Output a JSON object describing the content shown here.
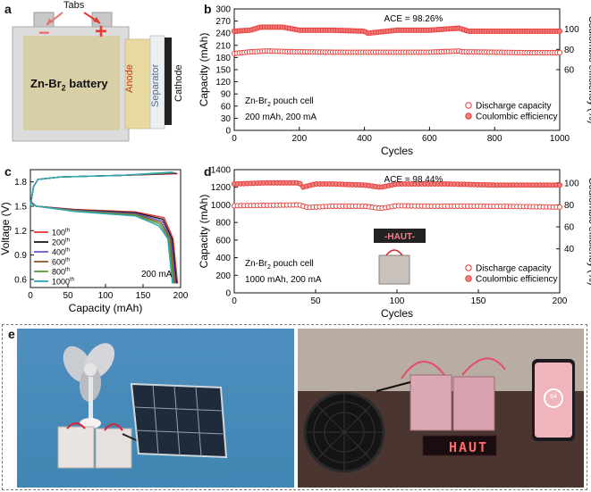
{
  "panel_labels": {
    "a": "a",
    "b": "b",
    "c": "c",
    "d": "d",
    "e": "e"
  },
  "battery_illustration": {
    "tabs_label": "Tabs",
    "battery_label_main": "Zn-Br",
    "battery_label_sub": "2",
    "battery_label_tail": " battery",
    "minus_sign": "−",
    "plus_sign": "+",
    "layer_anode": "Anode",
    "layer_separator": "Separator",
    "layer_cathode": "Cathode"
  },
  "photo_e": {
    "sign_text": "HAUT",
    "phone_text": "64"
  },
  "chart_data": [
    {
      "id": "b",
      "type": "scatter",
      "xlabel": "Cycles",
      "ylabel_left": "Capacity  (mAh)",
      "ylabel_right": "Coulombic efficiency  (%)",
      "xlim": [
        0,
        1000
      ],
      "ylim_left": [
        0,
        300
      ],
      "ylim_right": [
        0,
        120
      ],
      "x_ticks": [
        "0",
        "200",
        "400",
        "600",
        "800",
        "1000"
      ],
      "y_ticks_left": [
        "0",
        "30",
        "60",
        "90",
        "120",
        "150",
        "180",
        "210",
        "240",
        "270",
        "300"
      ],
      "y_ticks_right": [
        "60",
        "80",
        "100"
      ],
      "annotation": "ACE = 98.26%",
      "cell_text_main": "Zn-Br",
      "cell_text_sub": "2",
      "cell_text_tail": " pouch cell",
      "cell_condition": "200 mAh, 200 mA",
      "legend": {
        "position": "bottom-right"
      },
      "series": [
        {
          "name": "Discharge capacity",
          "axis": "left",
          "marker": "open-circle",
          "color": "#e53935",
          "points": [
            [
              0,
              190
            ],
            [
              50,
              194
            ],
            [
              100,
              196
            ],
            [
              150,
              195
            ],
            [
              200,
              194
            ],
            [
              300,
              193
            ],
            [
              400,
              193
            ],
            [
              500,
              193
            ],
            [
              600,
              193
            ],
            [
              690,
              196
            ],
            [
              700,
              194
            ],
            [
              800,
              193
            ],
            [
              900,
              192
            ],
            [
              1000,
              192
            ]
          ]
        },
        {
          "name": "Coulombic efficiency",
          "axis": "right",
          "marker": "filled-circle",
          "color": "#e53935",
          "points": [
            [
              0,
              98
            ],
            [
              50,
              99
            ],
            [
              80,
              102
            ],
            [
              150,
              102
            ],
            [
              200,
              99
            ],
            [
              300,
              99
            ],
            [
              400,
              98
            ],
            [
              410,
              96
            ],
            [
              500,
              99
            ],
            [
              600,
              99
            ],
            [
              690,
              101
            ],
            [
              720,
              98
            ],
            [
              780,
              98
            ],
            [
              800,
              98
            ],
            [
              900,
              98
            ],
            [
              1000,
              98
            ]
          ]
        }
      ]
    },
    {
      "id": "c",
      "type": "line",
      "xlabel": "Capacity (mAh)",
      "ylabel": "Voltage (V)",
      "xlim": [
        0,
        200
      ],
      "ylim": [
        0.5,
        1.95
      ],
      "x_ticks": [
        "0",
        "50",
        "100",
        "150",
        "200"
      ],
      "y_ticks": [
        "0.6",
        "0.9",
        "1.2",
        "1.5",
        "1.8"
      ],
      "annotation": "200 mA",
      "legend": {
        "position": "bottom-left"
      },
      "series": [
        {
          "name": "100",
          "sup": "th",
          "color": "#e53935"
        },
        {
          "name": "200",
          "sup": "th",
          "color": "#1a1a1a"
        },
        {
          "name": "400",
          "sup": "th",
          "color": "#6a5acd"
        },
        {
          "name": "600",
          "sup": "th",
          "color": "#8b5a2b"
        },
        {
          "name": "800",
          "sup": "th",
          "color": "#5a9a3a"
        },
        {
          "name": "1000",
          "sup": "th",
          "color": "#2aa7b8"
        }
      ]
    },
    {
      "id": "d",
      "type": "scatter",
      "xlabel": "Cycles",
      "ylabel_left": "Capacity (mAh)",
      "ylabel_right": "Coulombic efficiency (%)",
      "xlim": [
        0,
        200
      ],
      "ylim_left": [
        0,
        1400
      ],
      "ylim_right": [
        0,
        112
      ],
      "x_ticks": [
        "0",
        "50",
        "100",
        "150",
        "200"
      ],
      "y_ticks_left": [
        "0",
        "200",
        "400",
        "600",
        "800",
        "1000",
        "1200",
        "1400"
      ],
      "y_ticks_right": [
        "40",
        "60",
        "80",
        "100"
      ],
      "annotation": "ACE = 98.44%",
      "cell_text_main": "Zn-Br",
      "cell_text_sub": "2",
      "cell_text_tail": " pouch cell",
      "cell_condition": "1000 mAh, 200 mA",
      "inset_text": "HAUT",
      "legend": {
        "position": "bottom-right"
      },
      "series": [
        {
          "name": "Discharge capacity",
          "axis": "left",
          "marker": "open-circle",
          "color": "#e53935",
          "points": [
            [
              0,
              990
            ],
            [
              20,
              995
            ],
            [
              40,
              1000
            ],
            [
              45,
              970
            ],
            [
              60,
              985
            ],
            [
              80,
              985
            ],
            [
              90,
              960
            ],
            [
              100,
              990
            ],
            [
              120,
              985
            ],
            [
              150,
              985
            ],
            [
              180,
              980
            ],
            [
              200,
              975
            ]
          ]
        },
        {
          "name": "Coulombic efficiency",
          "axis": "right",
          "marker": "filled-circle",
          "color": "#e53935",
          "points": [
            [
              0,
              99
            ],
            [
              20,
              100
            ],
            [
              40,
              100
            ],
            [
              42,
              96
            ],
            [
              50,
              99
            ],
            [
              60,
              99
            ],
            [
              80,
              98
            ],
            [
              90,
              96
            ],
            [
              100,
              99
            ],
            [
              130,
              99
            ],
            [
              160,
              98
            ],
            [
              200,
              98
            ]
          ]
        }
      ]
    }
  ]
}
